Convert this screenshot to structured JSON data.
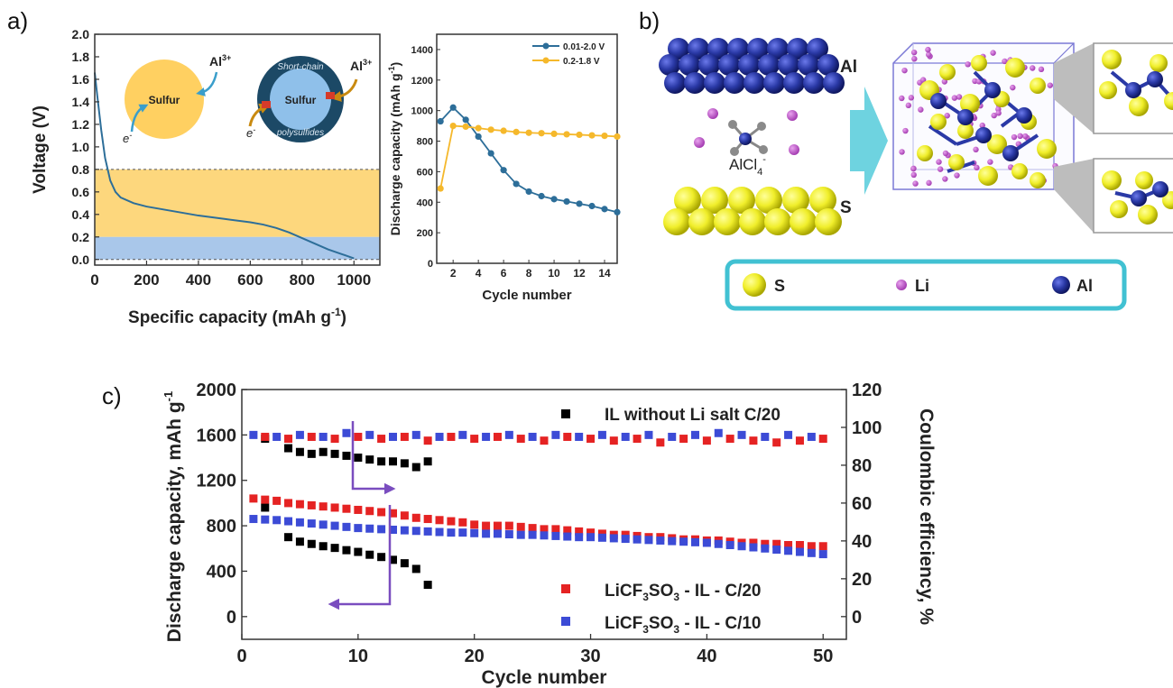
{
  "panel_labels": {
    "a": "a)",
    "b": "b)",
    "c": "c)"
  },
  "colors": {
    "blue": "#2d6e99",
    "yellow": "#f5b82b",
    "orange_fill": "#fdd77d",
    "light_blue_fill": "#a9c7ea",
    "sulfur": "#ffd061",
    "sulfur_light": "#8fc0ea",
    "navy": "#1c4966",
    "al_atom": "#28369a",
    "s_atom": "#f0ee2a",
    "li_atom": "#b44fbf",
    "teal": "#41c1d2",
    "purple_arrow": "#7a4dbf",
    "red_marker": "#e52323",
    "blue_marker": "#3c4bd6",
    "black_marker": "#000000"
  },
  "inset": {
    "left_circle_label": "Sulfur",
    "right_circle_label": "Sulfur",
    "ring_top": "Short-chain",
    "ring_bottom": "polysulfides",
    "al_ion": "Al",
    "al_sup": "3+",
    "electron": "e",
    "electron_sup": "-"
  },
  "panel_b": {
    "al_label": "Al",
    "s_label": "S",
    "anion_main": "AlCl",
    "anion_sub": "4",
    "anion_sup": "-",
    "legend": [
      {
        "label": "S",
        "icon": "sulfur-atom-icon"
      },
      {
        "label": "Li",
        "icon": "lithium-atom-icon"
      },
      {
        "label": "Al",
        "icon": "aluminum-atom-icon"
      }
    ]
  },
  "chart_data": [
    {
      "id": "a-main",
      "type": "line",
      "xlabel": "Specific capacity (mAh g",
      "xlabel_sup": "-1",
      "xlabel_end": ")",
      "ylabel": "Voltage (V)",
      "xlim": [
        0,
        1100
      ],
      "ylim": [
        -0.05,
        2.0
      ],
      "xticks": [
        "0",
        "200",
        "400",
        "600",
        "800",
        "1000"
      ],
      "xtick_values": [
        0,
        200,
        400,
        600,
        800,
        1000
      ],
      "yticks": [
        "0.0",
        "0.2",
        "0.4",
        "0.6",
        "0.8",
        "1.0",
        "1.2",
        "1.4",
        "1.6",
        "1.8",
        "2.0"
      ],
      "ytick_values": [
        0,
        0.2,
        0.4,
        0.6,
        0.8,
        1.0,
        1.2,
        1.4,
        1.6,
        1.8,
        2.0
      ],
      "bands": [
        {
          "from": 0.2,
          "to": 0.8,
          "color": "#fdd77d"
        },
        {
          "from": 0.0,
          "to": 0.2,
          "color": "#a9c7ea"
        }
      ],
      "series": [
        {
          "color": "#2d6e99",
          "x": [
            0,
            10,
            25,
            40,
            60,
            80,
            100,
            150,
            200,
            300,
            400,
            500,
            600,
            650,
            700,
            750,
            800,
            850,
            900,
            950,
            1000
          ],
          "y": [
            1.66,
            1.45,
            1.15,
            0.9,
            0.7,
            0.6,
            0.55,
            0.5,
            0.47,
            0.43,
            0.39,
            0.36,
            0.33,
            0.31,
            0.28,
            0.24,
            0.19,
            0.14,
            0.09,
            0.05,
            0.01
          ]
        }
      ]
    },
    {
      "id": "a-inset",
      "type": "line",
      "xlabel": "Cycle number",
      "ylabel": "Discharge capacity (mAh g",
      "ylabel_sup": "-1",
      "ylabel_end": ")",
      "xlim": [
        0.7,
        15
      ],
      "ylim": [
        0,
        1500
      ],
      "xticks": [
        "2",
        "4",
        "6",
        "8",
        "10",
        "12",
        "14"
      ],
      "xtick_values": [
        2,
        4,
        6,
        8,
        10,
        12,
        14
      ],
      "yticks": [
        "0",
        "200",
        "400",
        "600",
        "800",
        "1000",
        "1200",
        "1400"
      ],
      "ytick_values": [
        0,
        200,
        400,
        600,
        800,
        1000,
        1200,
        1400
      ],
      "legend_position": "top-right",
      "series": [
        {
          "name": "0.01-2.0 V",
          "color": "#2d6e99",
          "x": [
            1,
            2,
            3,
            4,
            5,
            6,
            7,
            8,
            9,
            10,
            11,
            12,
            13,
            14,
            15
          ],
          "y": [
            930,
            1020,
            940,
            830,
            720,
            610,
            520,
            470,
            440,
            420,
            405,
            390,
            375,
            355,
            335
          ]
        },
        {
          "name": "0.2-1.8 V",
          "color": "#f5b82b",
          "x": [
            1,
            2,
            3,
            4,
            5,
            6,
            7,
            8,
            9,
            10,
            11,
            12,
            13,
            14,
            15
          ],
          "y": [
            490,
            900,
            895,
            885,
            875,
            868,
            860,
            855,
            852,
            848,
            845,
            842,
            838,
            835,
            830
          ]
        }
      ]
    },
    {
      "id": "c",
      "type": "scatter",
      "xlabel": "Cycle number",
      "ylabel": "Discharge capacity, mAh g",
      "ylabel_sup": "-1",
      "y2label": "Coulombic efficiency, %",
      "xlim": [
        0,
        52
      ],
      "ylim": [
        -200,
        2000
      ],
      "y2lim": [
        0,
        120
      ],
      "xticks": [
        "0",
        "10",
        "20",
        "30",
        "40",
        "50"
      ],
      "xtick_values": [
        0,
        10,
        20,
        30,
        40,
        50
      ],
      "yticks": [
        "0",
        "400",
        "800",
        "1200",
        "1600",
        "2000"
      ],
      "ytick_values": [
        0,
        400,
        800,
        1200,
        1600,
        2000
      ],
      "y2ticks": [
        "0",
        "20",
        "40",
        "60",
        "80",
        "100",
        "120"
      ],
      "y2tick_values": [
        0,
        20,
        40,
        60,
        80,
        100,
        120
      ],
      "legend": [
        {
          "name": "IL without Li salt C/20",
          "color": "#000000"
        },
        {
          "name_main": "LiCF",
          "name_sub1": "3",
          "name_mid": "SO",
          "name_sub2": "3",
          "name_end": " - IL - C/20",
          "color": "#e52323"
        },
        {
          "name_main": "LiCF",
          "name_sub1": "3",
          "name_mid": "SO",
          "name_sub2": "3",
          "name_end": " - IL - C/10",
          "color": "#3c4bd6"
        }
      ],
      "series": [
        {
          "color": "#000000",
          "axis": "left",
          "x": [
            2,
            4,
            5,
            6,
            7,
            8,
            9,
            10,
            11,
            12,
            13,
            14,
            15,
            16
          ],
          "y": [
            960,
            700,
            660,
            640,
            620,
            605,
            585,
            570,
            545,
            525,
            500,
            470,
            420,
            280
          ]
        },
        {
          "color": "#000000",
          "axis": "right",
          "x": [
            2,
            4,
            5,
            6,
            7,
            8,
            9,
            10,
            11,
            12,
            13,
            14,
            15,
            16
          ],
          "y": [
            94,
            89,
            87,
            86,
            87,
            86,
            85,
            84,
            83,
            82,
            82,
            81,
            79,
            82
          ]
        },
        {
          "color": "#e52323",
          "axis": "left",
          "x": [
            1,
            2,
            3,
            4,
            5,
            6,
            7,
            8,
            9,
            10,
            11,
            12,
            13,
            14,
            15,
            16,
            17,
            18,
            19,
            20,
            21,
            22,
            23,
            24,
            25,
            26,
            27,
            28,
            29,
            30,
            31,
            32,
            33,
            34,
            35,
            36,
            37,
            38,
            39,
            40,
            41,
            42,
            43,
            44,
            45,
            46,
            47,
            48,
            49,
            50
          ],
          "y": [
            1040,
            1030,
            1020,
            1000,
            990,
            980,
            970,
            960,
            950,
            940,
            930,
            920,
            910,
            890,
            870,
            860,
            850,
            840,
            830,
            810,
            800,
            800,
            800,
            790,
            780,
            770,
            770,
            760,
            750,
            740,
            730,
            720,
            720,
            710,
            700,
            700,
            690,
            680,
            680,
            670,
            670,
            660,
            650,
            650,
            640,
            640,
            630,
            630,
            620,
            620
          ]
        },
        {
          "color": "#e52323",
          "axis": "right",
          "x": [
            2,
            4,
            6,
            8,
            10,
            12,
            14,
            16,
            18,
            20,
            22,
            24,
            26,
            28,
            30,
            32,
            34,
            36,
            38,
            40,
            42,
            44,
            46,
            48,
            50
          ],
          "y": [
            95,
            94,
            95,
            94,
            95,
            94,
            95,
            93,
            95,
            94,
            95,
            94,
            93,
            95,
            94,
            93,
            94,
            92,
            94,
            93,
            94,
            93,
            92,
            93,
            94
          ]
        },
        {
          "color": "#3c4bd6",
          "axis": "left",
          "x": [
            1,
            2,
            3,
            4,
            5,
            6,
            7,
            8,
            9,
            10,
            11,
            12,
            13,
            14,
            15,
            16,
            17,
            18,
            19,
            20,
            21,
            22,
            23,
            24,
            25,
            26,
            27,
            28,
            29,
            30,
            31,
            32,
            33,
            34,
            35,
            36,
            37,
            38,
            39,
            40,
            41,
            42,
            43,
            44,
            45,
            46,
            47,
            48,
            49,
            50
          ],
          "y": [
            860,
            855,
            850,
            840,
            830,
            820,
            810,
            800,
            790,
            780,
            775,
            770,
            765,
            760,
            755,
            750,
            745,
            740,
            740,
            735,
            730,
            730,
            725,
            720,
            720,
            715,
            710,
            705,
            700,
            700,
            695,
            690,
            685,
            680,
            675,
            670,
            665,
            660,
            655,
            650,
            640,
            630,
            620,
            610,
            600,
            590,
            580,
            570,
            560,
            550
          ]
        },
        {
          "color": "#3c4bd6",
          "axis": "right",
          "x": [
            1,
            3,
            5,
            7,
            9,
            11,
            13,
            15,
            17,
            19,
            21,
            23,
            25,
            27,
            29,
            31,
            33,
            35,
            37,
            39,
            41,
            43,
            45,
            47,
            49
          ],
          "y": [
            96,
            95,
            96,
            95,
            97,
            96,
            95,
            96,
            95,
            96,
            95,
            96,
            95,
            96,
            95,
            96,
            95,
            96,
            95,
            96,
            97,
            96,
            95,
            96,
            95
          ]
        }
      ]
    }
  ]
}
